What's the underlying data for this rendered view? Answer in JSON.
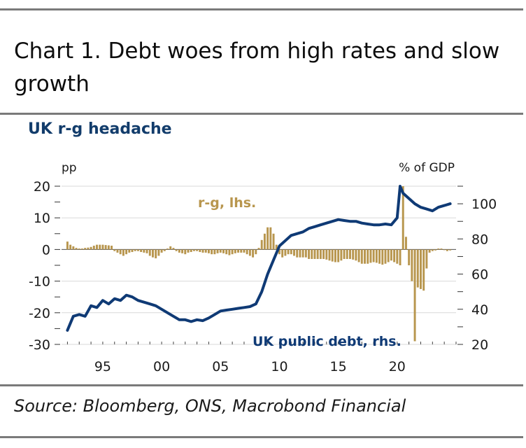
{
  "header": {
    "title": "Chart 1. Debt woes from high rates and slow growth",
    "subtitle": "UK r-g headache",
    "source": "Source: Bloomberg, ONS, Macrobond Financial"
  },
  "colors": {
    "bars": "#b8964e",
    "line": "#0f3a75",
    "grid": "#d9d9d9",
    "rule": "#7a7a7a"
  },
  "chart_data": {
    "type": "bar+line",
    "title": "UK r-g headache",
    "left_axis": {
      "label": "pp",
      "range": [
        -30,
        20
      ],
      "ticks": [
        "20",
        "10",
        "0",
        "-10",
        "-20",
        "-30"
      ],
      "tick_values": [
        20,
        10,
        0,
        -10,
        -20,
        -30
      ]
    },
    "right_axis": {
      "label": "% of GDP",
      "range": [
        20,
        110
      ],
      "ticks": [
        "100",
        "80",
        "60",
        "40",
        "20"
      ],
      "tick_values": [
        100,
        80,
        60,
        40,
        20
      ]
    },
    "x_axis": {
      "range": [
        1991.5,
        2025
      ],
      "ticks": [
        "95",
        "00",
        "05",
        "10",
        "15",
        "20"
      ],
      "tick_values": [
        1995,
        2000,
        2005,
        2010,
        2015,
        2020
      ]
    },
    "annotations": [
      {
        "text": "r-g, lhs.",
        "series": "r-g"
      },
      {
        "text": "UK public debt, rhs.",
        "series": "debt"
      }
    ],
    "series": [
      {
        "name": "r-g, lhs.",
        "type": "bar",
        "axis": "left",
        "x": [
          1992.0,
          1992.25,
          1992.5,
          1992.75,
          1993.0,
          1993.25,
          1993.5,
          1993.75,
          1994.0,
          1994.25,
          1994.5,
          1994.75,
          1995.0,
          1995.25,
          1995.5,
          1995.75,
          1996.0,
          1996.25,
          1996.5,
          1996.75,
          1997.0,
          1997.25,
          1997.5,
          1997.75,
          1998.0,
          1998.25,
          1998.5,
          1998.75,
          1999.0,
          1999.25,
          1999.5,
          1999.75,
          2000.0,
          2000.25,
          2000.5,
          2000.75,
          2001.0,
          2001.25,
          2001.5,
          2001.75,
          2002.0,
          2002.25,
          2002.5,
          2002.75,
          2003.0,
          2003.25,
          2003.5,
          2003.75,
          2004.0,
          2004.25,
          2004.5,
          2004.75,
          2005.0,
          2005.25,
          2005.5,
          2005.75,
          2006.0,
          2006.25,
          2006.5,
          2006.75,
          2007.0,
          2007.25,
          2007.5,
          2007.75,
          2008.0,
          2008.25,
          2008.5,
          2008.75,
          2009.0,
          2009.25,
          2009.5,
          2009.75,
          2010.0,
          2010.25,
          2010.5,
          2010.75,
          2011.0,
          2011.25,
          2011.5,
          2011.75,
          2012.0,
          2012.25,
          2012.5,
          2012.75,
          2013.0,
          2013.25,
          2013.5,
          2013.75,
          2014.0,
          2014.25,
          2014.5,
          2014.75,
          2015.0,
          2015.25,
          2015.5,
          2015.75,
          2016.0,
          2016.25,
          2016.5,
          2016.75,
          2017.0,
          2017.25,
          2017.5,
          2017.75,
          2018.0,
          2018.25,
          2018.5,
          2018.75,
          2019.0,
          2019.25,
          2019.5,
          2019.75,
          2020.0,
          2020.25,
          2020.5,
          2020.75,
          2021.0,
          2021.25,
          2021.5,
          2021.75,
          2022.0,
          2022.25,
          2022.5,
          2022.75,
          2023.0,
          2023.25,
          2023.5,
          2023.75,
          2024.0,
          2024.25,
          2024.5
        ],
        "values": [
          2.5,
          1.5,
          1.0,
          0.5,
          0.3,
          0.3,
          0.5,
          0.6,
          0.8,
          1.2,
          1.5,
          1.5,
          1.5,
          1.4,
          1.3,
          1.2,
          -0.5,
          -1.0,
          -1.5,
          -2.0,
          -1.5,
          -1.0,
          -0.8,
          -0.5,
          -0.5,
          -0.8,
          -1.0,
          -1.2,
          -2.0,
          -2.5,
          -2.8,
          -2.0,
          -1.0,
          -0.5,
          0.3,
          1.0,
          0.5,
          -0.5,
          -1.0,
          -1.2,
          -1.5,
          -1.0,
          -0.8,
          -0.5,
          -0.5,
          -0.8,
          -1.0,
          -1.0,
          -1.2,
          -1.5,
          -1.5,
          -1.2,
          -1.0,
          -1.2,
          -1.5,
          -1.8,
          -1.5,
          -1.2,
          -1.0,
          -1.0,
          -1.0,
          -1.5,
          -2.0,
          -2.5,
          -1.5,
          0.5,
          3.0,
          5.0,
          7.0,
          7.0,
          5.0,
          1.5,
          -1.5,
          -2.5,
          -2.0,
          -1.5,
          -1.5,
          -2.0,
          -2.5,
          -2.5,
          -2.5,
          -2.5,
          -3.0,
          -3.0,
          -3.0,
          -3.0,
          -3.0,
          -3.0,
          -3.2,
          -3.5,
          -3.8,
          -4.0,
          -4.0,
          -3.5,
          -3.0,
          -3.0,
          -3.0,
          -3.2,
          -3.5,
          -4.0,
          -4.5,
          -4.5,
          -4.5,
          -4.2,
          -4.0,
          -4.2,
          -4.5,
          -4.8,
          -4.5,
          -4.0,
          -3.5,
          -4.0,
          -4.5,
          -5.0,
          20.0,
          4.0,
          -5.0,
          -10.0,
          -29.0,
          -12.0,
          -12.5,
          -13.0,
          -6.0,
          -1.0,
          -0.5,
          -0.3,
          0.3,
          0.3,
          -0.2,
          -0.5,
          -0.3
        ]
      },
      {
        "name": "UK public debt, rhs.",
        "type": "line",
        "axis": "right",
        "x": [
          1992.0,
          1992.5,
          1993.0,
          1993.5,
          1994.0,
          1994.5,
          1995.0,
          1995.5,
          1996.0,
          1996.5,
          1997.0,
          1997.5,
          1998.0,
          1998.5,
          1999.0,
          1999.5,
          2000.0,
          2000.5,
          2001.0,
          2001.5,
          2002.0,
          2002.5,
          2003.0,
          2003.5,
          2004.0,
          2004.5,
          2005.0,
          2005.5,
          2006.0,
          2006.5,
          2007.0,
          2007.5,
          2008.0,
          2008.5,
          2009.0,
          2009.5,
          2010.0,
          2010.5,
          2011.0,
          2011.5,
          2012.0,
          2012.5,
          2013.0,
          2013.5,
          2014.0,
          2014.5,
          2015.0,
          2015.5,
          2016.0,
          2016.5,
          2017.0,
          2017.5,
          2018.0,
          2018.5,
          2019.0,
          2019.5,
          2020.0,
          2020.25,
          2020.5,
          2021.0,
          2021.5,
          2022.0,
          2022.5,
          2023.0,
          2023.5,
          2024.0,
          2024.5
        ],
        "values": [
          28,
          36,
          37,
          36,
          42,
          41,
          45,
          43,
          46,
          45,
          48,
          47,
          45,
          44,
          43,
          42,
          40,
          38,
          36,
          34,
          34,
          33,
          34,
          33.5,
          35,
          37,
          39,
          39.5,
          40,
          40.5,
          41,
          41.5,
          43,
          50,
          60,
          68,
          76,
          79,
          82,
          83,
          84,
          86,
          87,
          88,
          89,
          90,
          91,
          90.5,
          90,
          90,
          89,
          88.5,
          88,
          88,
          88.5,
          88,
          92,
          110,
          106,
          103,
          100,
          98,
          97,
          96,
          98,
          99,
          100
        ]
      }
    ]
  }
}
